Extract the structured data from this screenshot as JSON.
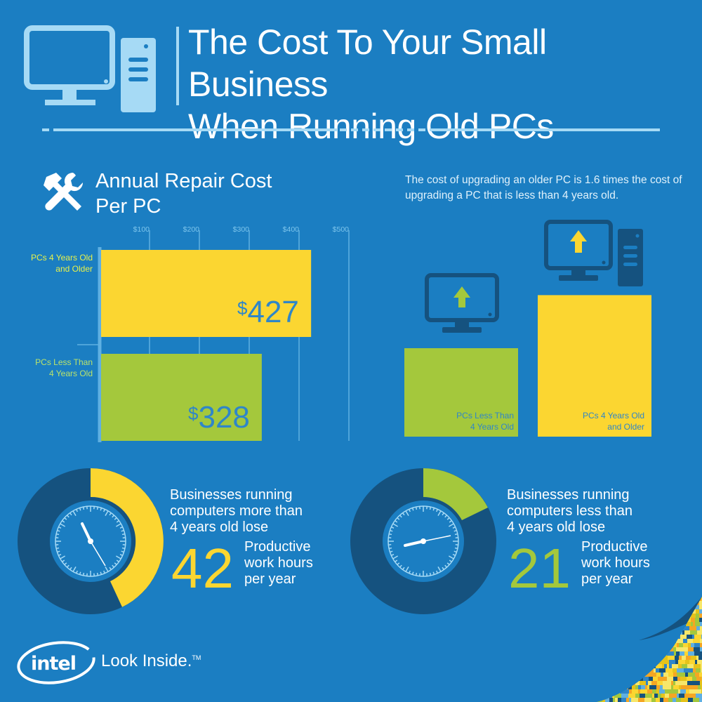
{
  "header": {
    "title_line1": "The Cost To Your Small Business",
    "title_line2": "When Running Old PCs"
  },
  "repair_section": {
    "title_line1": "Annual Repair Cost",
    "title_line2": "Per PC",
    "axis_ticks": [
      "$100",
      "$200",
      "$300",
      "$400",
      "$500"
    ],
    "bars": [
      {
        "label_line1": "PCs 4 Years Old",
        "label_line2": "and Older",
        "value": 427,
        "value_text": "427",
        "currency": "$",
        "color": "#fbd631"
      },
      {
        "label_line1": "PCs Less Than",
        "label_line2": "4 Years Old",
        "value": 328,
        "value_text": "328",
        "currency": "$",
        "color": "#a4c83c"
      }
    ]
  },
  "upgrade_section": {
    "note": "The cost of upgrading an older PC is 1.6 times the cost of upgrading a PC that is less than 4 years old.",
    "columns": [
      {
        "label_line1": "PCs Less Than",
        "label_line2": "4 Years Old",
        "relative_value": 1,
        "color": "#a4c83c",
        "icon": "monitor-upgrade-icon"
      },
      {
        "label_line1": "PCs 4 Years Old",
        "label_line2": "and Older",
        "relative_value": 1.6,
        "color": "#fbd631",
        "icon": "desktop-tower-upgrade-icon"
      }
    ]
  },
  "stats": [
    {
      "text_line1": "Businesses running",
      "text_line2": "computers more than",
      "text_line3": "4 years old lose",
      "number": "42",
      "unit_line1": "Productive",
      "unit_line2": "work hours",
      "unit_line3": "per year",
      "color": "#fbd631"
    },
    {
      "text_line1": "Businesses running",
      "text_line2": "computers less than",
      "text_line3": "4 years old lose",
      "number": "21",
      "unit_line1": "Productive",
      "unit_line2": "work hours",
      "unit_line3": "per year",
      "color": "#a4c83c"
    }
  ],
  "branding": {
    "logo": "intel",
    "tagline": "Look Inside.",
    "trademark": "TM"
  },
  "colors": {
    "background": "#1b7ec2",
    "yellow": "#fbd631",
    "green": "#a4c83c",
    "dark_blue": "#15527f",
    "light_blue": "#a6daf5"
  }
}
